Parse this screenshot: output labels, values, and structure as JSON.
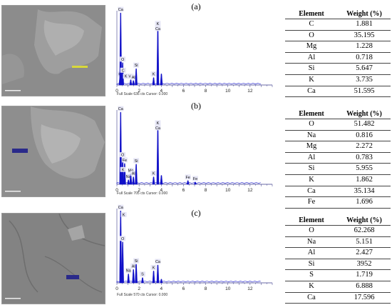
{
  "panels": [
    {
      "label": "(a)",
      "spectrum": {
        "caption": "Full Scale 636 cts Cursor: 0.000",
        "peaks": [
          {
            "kev": 0.28,
            "h": 0.1,
            "label": "C"
          },
          {
            "kev": 0.34,
            "h": 0.97,
            "label": "Ca"
          },
          {
            "kev": 0.52,
            "h": 0.3,
            "label": "O"
          },
          {
            "kev": 1.25,
            "h": 0.07,
            "label": "Mg"
          },
          {
            "kev": 1.49,
            "h": 0.06,
            "label": "Al"
          },
          {
            "kev": 1.74,
            "h": 0.22,
            "label": "Si"
          },
          {
            "kev": 3.31,
            "h": 0.1,
            "label": "K"
          },
          {
            "kev": 3.69,
            "h": 0.78,
            "label": "K Ca"
          },
          {
            "kev": 4.01,
            "h": 0.15,
            "label": ""
          }
        ],
        "extra_labels": [
          {
            "kev": 0.55,
            "h": 0.1,
            "label": "K"
          },
          {
            "kev": 0.3,
            "h": 0.18,
            "label": "C"
          }
        ]
      },
      "table": {
        "header": [
          "Element",
          "Weight (%)"
        ],
        "rows": [
          [
            "C",
            "1.881"
          ],
          [
            "O",
            "35.195"
          ],
          [
            "Mg",
            "1.228"
          ],
          [
            "Al",
            "0.718"
          ],
          [
            "Si",
            "5.647"
          ],
          [
            "K",
            "3.735"
          ],
          [
            "Ca",
            "51.595"
          ]
        ]
      }
    },
    {
      "label": "(b)",
      "spectrum": {
        "caption": "Full Scale 705 cts Cursor: 0.000",
        "peaks": [
          {
            "kev": 0.34,
            "h": 0.97,
            "label": "Ca"
          },
          {
            "kev": 0.52,
            "h": 0.35,
            "label": "O"
          },
          {
            "kev": 0.7,
            "h": 0.28,
            "label": "Fe"
          },
          {
            "kev": 1.04,
            "h": 0.06,
            "label": "Na"
          },
          {
            "kev": 1.25,
            "h": 0.14,
            "label": "Mg"
          },
          {
            "kev": 1.49,
            "h": 0.1,
            "label": "Al"
          },
          {
            "kev": 1.74,
            "h": 0.27,
            "label": "Si"
          },
          {
            "kev": 3.31,
            "h": 0.1,
            "label": "K"
          },
          {
            "kev": 3.69,
            "h": 0.78,
            "label": "K Ca"
          },
          {
            "kev": 4.01,
            "h": 0.12,
            "label": ""
          },
          {
            "kev": 6.4,
            "h": 0.05,
            "label": "Fe"
          },
          {
            "kev": 7.06,
            "h": 0.03,
            "label": "Fe"
          }
        ],
        "extra_labels": [
          {
            "kev": 0.3,
            "h": 0.18,
            "label": "K"
          }
        ]
      },
      "table": {
        "header": [
          "Element",
          "Weight (%)"
        ],
        "rows": [
          [
            "O",
            "51.482"
          ],
          [
            "Na",
            "0.816"
          ],
          [
            "Mg",
            "2.272"
          ],
          [
            "Al",
            "0.783"
          ],
          [
            "Si",
            "5.955"
          ],
          [
            "K",
            "1.862"
          ],
          [
            "Ca",
            "35.134"
          ],
          [
            "Fe",
            "1.696"
          ]
        ]
      }
    },
    {
      "label": "(c)",
      "spectrum": {
        "caption": "Full Scale 570 cts Cursor: 0.000",
        "peaks": [
          {
            "kev": 0.34,
            "h": 0.97,
            "label": "Ca"
          },
          {
            "kev": 0.52,
            "h": 0.55,
            "label": "O"
          },
          {
            "kev": 1.04,
            "h": 0.12,
            "label": "Na"
          },
          {
            "kev": 1.49,
            "h": 0.18,
            "label": "Al"
          },
          {
            "kev": 1.74,
            "h": 0.25,
            "label": "Si"
          },
          {
            "kev": 2.31,
            "h": 0.07,
            "label": "S"
          },
          {
            "kev": 3.31,
            "h": 0.16,
            "label": "K"
          },
          {
            "kev": 3.69,
            "h": 0.24,
            "label": "Ca"
          },
          {
            "kev": 4.01,
            "h": 0.05,
            "label": ""
          }
        ],
        "extra_labels": [
          {
            "kev": 0.36,
            "h": 0.9,
            "label": "K"
          }
        ]
      },
      "table": {
        "header": [
          "Element",
          "Weight (%)"
        ],
        "rows": [
          [
            "O",
            "62.268"
          ],
          [
            "Na",
            "5.151"
          ],
          [
            "Al",
            "2.427"
          ],
          [
            "Si",
            "3952"
          ],
          [
            "S",
            "1.719"
          ],
          [
            "K",
            "6.888"
          ],
          [
            "Ca",
            "17.596"
          ]
        ]
      }
    }
  ],
  "x_ticks": [
    "0",
    "2",
    "4",
    "6",
    "8",
    "10",
    "12"
  ],
  "colors": {
    "peak": "#1010c8",
    "axis": "#3a3a8a",
    "label_bg": "#e6e6f6"
  }
}
